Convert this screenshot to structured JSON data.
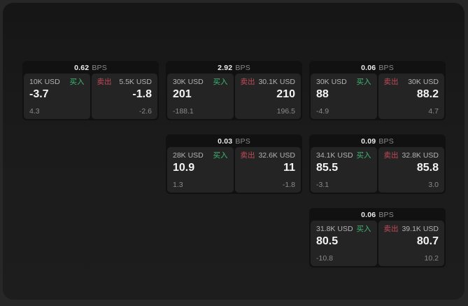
{
  "colors": {
    "buy_green": "#3db873",
    "sell_red": "#c24a59",
    "window_bg": "#1a1a1a",
    "card_bg": "#111111",
    "panel_bg": "#242424"
  },
  "cards": [
    {
      "spread": "0.62",
      "unit": "BPS",
      "buy": {
        "amount": "10K USD",
        "tag": "买入",
        "price": "-3.7",
        "delta": "4.3"
      },
      "sell": {
        "tag": "卖出",
        "amount": "5.5K USD",
        "price": "-1.8",
        "delta": "-2.6"
      }
    },
    {
      "spread": "2.92",
      "unit": "BPS",
      "buy": {
        "amount": "30K USD",
        "tag": "买入",
        "price": "201",
        "delta": "-188.1"
      },
      "sell": {
        "tag": "卖出",
        "amount": "30.1K USD",
        "price": "210",
        "delta": "196.5"
      }
    },
    {
      "spread": "0.06",
      "unit": "BPS",
      "buy": {
        "amount": "30K USD",
        "tag": "买入",
        "price": "88",
        "delta": "-4.9"
      },
      "sell": {
        "tag": "卖出",
        "amount": "30K USD",
        "price": "88.2",
        "delta": "4.7"
      }
    },
    {
      "spread": "0.03",
      "unit": "BPS",
      "buy": {
        "amount": "28K USD",
        "tag": "买入",
        "price": "10.9",
        "delta": "1.3"
      },
      "sell": {
        "tag": "卖出",
        "amount": "32.6K USD",
        "price": "11",
        "delta": "-1.8"
      }
    },
    {
      "spread": "0.09",
      "unit": "BPS",
      "buy": {
        "amount": "34.1K USD",
        "tag": "买入",
        "price": "85.5",
        "delta": "-3.1"
      },
      "sell": {
        "tag": "卖出",
        "amount": "32.8K USD",
        "price": "85.8",
        "delta": "3.0"
      }
    },
    {
      "spread": "0.06",
      "unit": "BPS",
      "buy": {
        "amount": "31.8K USD",
        "tag": "买入",
        "price": "80.5",
        "delta": "-10.8"
      },
      "sell": {
        "tag": "卖出",
        "amount": "39.1K USD",
        "price": "80.7",
        "delta": "10.2"
      }
    }
  ]
}
